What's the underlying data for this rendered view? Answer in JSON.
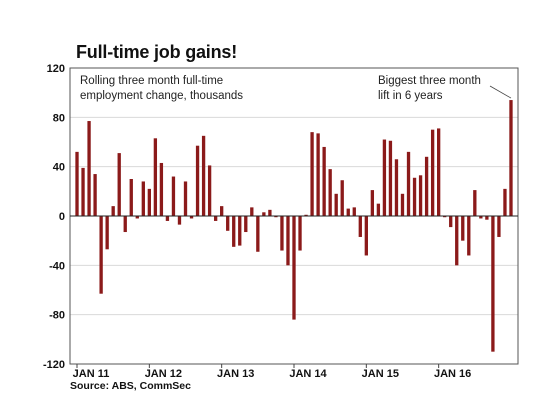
{
  "title": "Full-time job gains!",
  "source": "Source: ABS, CommSec",
  "chart_data": {
    "type": "bar",
    "title": "Full-time job gains!",
    "annotation_left": [
      "Rolling three month full-time",
      "employment change, thousands"
    ],
    "annotation_right": [
      "Biggest three month",
      "lift in 6 years"
    ],
    "ylim": [
      -120,
      120
    ],
    "yticks": [
      120,
      80,
      40,
      0,
      -40,
      -80,
      -120
    ],
    "xticks": [
      {
        "label": "JAN 11",
        "index": 0
      },
      {
        "label": "JAN 12",
        "index": 12
      },
      {
        "label": "JAN 13",
        "index": 24
      },
      {
        "label": "JAN 14",
        "index": 36
      },
      {
        "label": "JAN 15",
        "index": 48
      },
      {
        "label": "JAN 16",
        "index": 60
      }
    ],
    "bar_color": "#8b1a1a",
    "grid": true,
    "series": [
      {
        "values": [
          52,
          39,
          77,
          34,
          -63,
          -27,
          8,
          51,
          -13,
          30,
          -2,
          28,
          22,
          63,
          43,
          -4,
          32,
          -7,
          28,
          -2,
          57,
          65,
          41,
          -4,
          8,
          -12,
          -25,
          -24,
          -13,
          7,
          -29,
          3,
          5,
          -1,
          -28,
          -40,
          -84,
          -28,
          1,
          68,
          67,
          56,
          38,
          18,
          29,
          6,
          7,
          -17,
          -32,
          21,
          10,
          62,
          61,
          46,
          18,
          52,
          31,
          33,
          48,
          70,
          71,
          -1,
          -9,
          -40,
          -20,
          -32,
          21,
          -2,
          -3,
          -110,
          -17,
          22,
          94
        ]
      }
    ]
  }
}
